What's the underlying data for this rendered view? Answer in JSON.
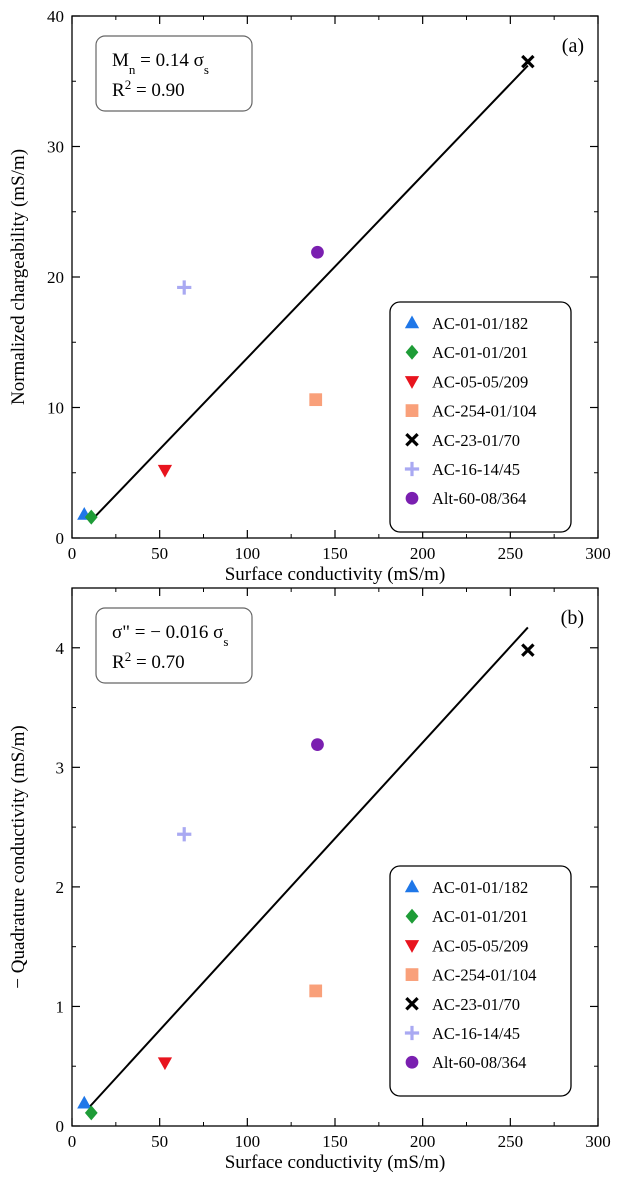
{
  "chart_data": [
    {
      "type": "scatter",
      "panel_label": "(a)",
      "xlabel": "Surface conductivity (mS/m)",
      "ylabel": "Normalized chargeability (mS/m)",
      "xlim": [
        0,
        300
      ],
      "ylim": [
        0,
        40
      ],
      "x_ticks": [
        "0",
        "50",
        "100",
        "150",
        "200",
        "250",
        "300"
      ],
      "y_ticks": [
        "0",
        "10",
        "20",
        "30",
        "40"
      ],
      "grid": false,
      "legend_position": "bottom-right",
      "annotation": {
        "position": "top-left",
        "line1": {
          "lhs_main": "M",
          "lhs_sub": "n",
          "rhs_main": " = 0.14 σ",
          "rhs_sub": "s"
        },
        "line2": {
          "main": "R",
          "sup": "2",
          "rest": " = 0.90"
        }
      },
      "fit_line": {
        "x": [
          10,
          260
        ],
        "y": [
          1.2,
          36.2
        ]
      },
      "series": [
        {
          "name": "AC-01-01/182",
          "marker": "triangle-up",
          "color": "#1f77e8",
          "x": [
            7
          ],
          "y": [
            1.8
          ]
        },
        {
          "name": "AC-01-01/201",
          "marker": "diamond",
          "color": "#1e9c37",
          "x": [
            11
          ],
          "y": [
            1.6
          ]
        },
        {
          "name": "AC-05-05/209",
          "marker": "triangle-down",
          "color": "#e8141e",
          "x": [
            53
          ],
          "y": [
            5.2
          ]
        },
        {
          "name": "AC-254-01/104",
          "marker": "square",
          "color": "#f9a07a",
          "x": [
            139
          ],
          "y": [
            10.6
          ]
        },
        {
          "name": "AC-23-01/70",
          "marker": "x",
          "color": "#000000",
          "x": [
            260
          ],
          "y": [
            36.5
          ]
        },
        {
          "name": "AC-16-14/45",
          "marker": "plus",
          "color": "#a9a9f2",
          "x": [
            64
          ],
          "y": [
            19.2
          ]
        },
        {
          "name": "Alt-60-08/364",
          "marker": "circle",
          "color": "#7a1fb0",
          "x": [
            140
          ],
          "y": [
            21.9
          ]
        }
      ]
    },
    {
      "type": "scatter",
      "panel_label": "(b)",
      "xlabel": "Surface conductivity (mS/m)",
      "ylabel": "− Quadrature conductivity (mS/m)",
      "xlim": [
        0,
        300
      ],
      "ylim": [
        0,
        4.5
      ],
      "x_ticks": [
        "0",
        "50",
        "100",
        "150",
        "200",
        "250",
        "300"
      ],
      "y_ticks": [
        "0",
        "1",
        "2",
        "3",
        "4"
      ],
      "grid": false,
      "legend_position": "bottom-right",
      "annotation": {
        "position": "top-left",
        "line1": {
          "lhs_main": "σ\" = − 0.016 σ",
          "lhs_sub": "s",
          "rhs_main": "",
          "rhs_sub": ""
        },
        "line2": {
          "main": "R",
          "sup": "2",
          "rest": " = 0.70"
        }
      },
      "fit_line": {
        "x": [
          10,
          260
        ],
        "y": [
          0.16,
          4.17
        ]
      },
      "series": [
        {
          "name": "AC-01-01/182",
          "marker": "triangle-up",
          "color": "#1f77e8",
          "x": [
            7
          ],
          "y": [
            0.19
          ]
        },
        {
          "name": "AC-01-01/201",
          "marker": "diamond",
          "color": "#1e9c37",
          "x": [
            11
          ],
          "y": [
            0.11
          ]
        },
        {
          "name": "AC-05-05/209",
          "marker": "triangle-down",
          "color": "#e8141e",
          "x": [
            53
          ],
          "y": [
            0.53
          ]
        },
        {
          "name": "AC-254-01/104",
          "marker": "square",
          "color": "#f9a07a",
          "x": [
            139
          ],
          "y": [
            1.13
          ]
        },
        {
          "name": "AC-23-01/70",
          "marker": "x",
          "color": "#000000",
          "x": [
            260
          ],
          "y": [
            3.98
          ]
        },
        {
          "name": "AC-16-14/45",
          "marker": "plus",
          "color": "#a9a9f2",
          "x": [
            64
          ],
          "y": [
            2.44
          ]
        },
        {
          "name": "Alt-60-08/364",
          "marker": "circle",
          "color": "#7a1fb0",
          "x": [
            140
          ],
          "y": [
            3.19
          ]
        }
      ]
    }
  ]
}
